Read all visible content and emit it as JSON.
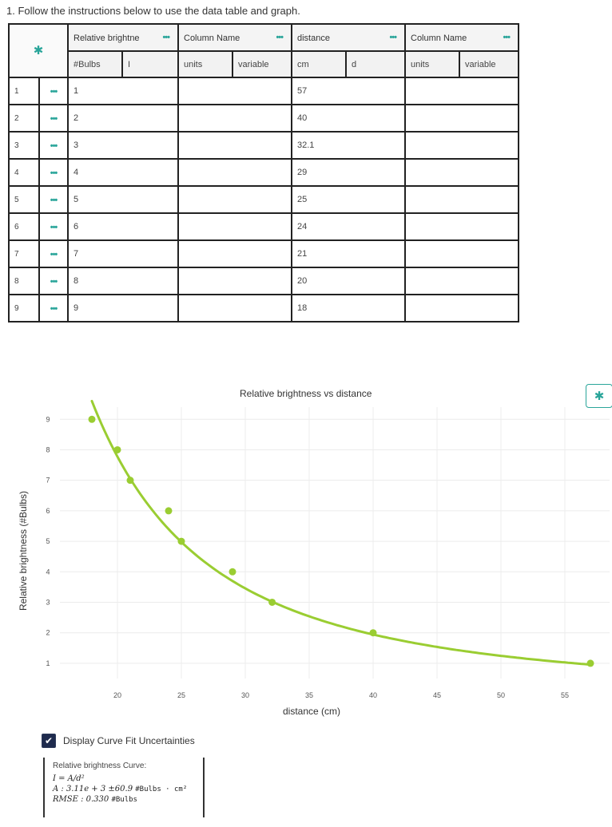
{
  "instruction": "1. Follow the instructions below to use the data table and graph.",
  "table": {
    "columns": [
      {
        "name": "Relative brightne",
        "units": "#Bulbs",
        "variable": "I"
      },
      {
        "name": "Column Name",
        "units": "units",
        "variable": "variable"
      },
      {
        "name": "distance",
        "units": "cm",
        "variable": "d"
      },
      {
        "name": "Column Name",
        "units": "units",
        "variable": "variable"
      }
    ],
    "rows": [
      {
        "index": "1",
        "c1": "1",
        "c2": "",
        "c3": "57",
        "c4": ""
      },
      {
        "index": "2",
        "c1": "2",
        "c2": "",
        "c3": "40",
        "c4": ""
      },
      {
        "index": "3",
        "c1": "3",
        "c2": "",
        "c3": "32.1",
        "c4": ""
      },
      {
        "index": "4",
        "c1": "4",
        "c2": "",
        "c3": "29",
        "c4": ""
      },
      {
        "index": "5",
        "c1": "5",
        "c2": "",
        "c3": "25",
        "c4": ""
      },
      {
        "index": "6",
        "c1": "6",
        "c2": "",
        "c3": "24",
        "c4": ""
      },
      {
        "index": "7",
        "c1": "7",
        "c2": "",
        "c3": "21",
        "c4": ""
      },
      {
        "index": "8",
        "c1": "8",
        "c2": "",
        "c3": "20",
        "c4": ""
      },
      {
        "index": "9",
        "c1": "9",
        "c2": "",
        "c3": "18",
        "c4": ""
      }
    ],
    "dots_glyph": "•••",
    "gear_icon": "gear-icon"
  },
  "chart_data": {
    "type": "scatter",
    "title": "Relative brightness vs distance",
    "xlabel": "distance (cm)",
    "ylabel": "Relative brightness (#Bulbs)",
    "xlim": [
      15.5,
      58.5
    ],
    "ylim": [
      0.5,
      9.4
    ],
    "xticks": [
      20,
      25,
      30,
      35,
      40,
      45,
      50,
      55
    ],
    "yticks": [
      1,
      2,
      3,
      4,
      5,
      6,
      7,
      8,
      9
    ],
    "points": [
      {
        "x": 57,
        "y": 1
      },
      {
        "x": 40,
        "y": 2
      },
      {
        "x": 32.1,
        "y": 3
      },
      {
        "x": 29,
        "y": 4
      },
      {
        "x": 25,
        "y": 5
      },
      {
        "x": 24,
        "y": 6
      },
      {
        "x": 21,
        "y": 7
      },
      {
        "x": 20,
        "y": 8
      },
      {
        "x": 18,
        "y": 9
      }
    ],
    "fit": {
      "model": "I = A/d^2",
      "A": 3110
    },
    "color": "#9acd32",
    "grid": true
  },
  "fit_panel": {
    "checkbox_label": "Display Curve Fit Uncertainties",
    "checked": true,
    "title": "Relative brightness Curve:",
    "equation": "I = A/d²",
    "param_value": "A : 3.11e + 3 ±60.9",
    "param_units": "#Bulbs · cm²",
    "rmse_value": "RMSE : 0.330",
    "rmse_units": "#Bulbs"
  }
}
